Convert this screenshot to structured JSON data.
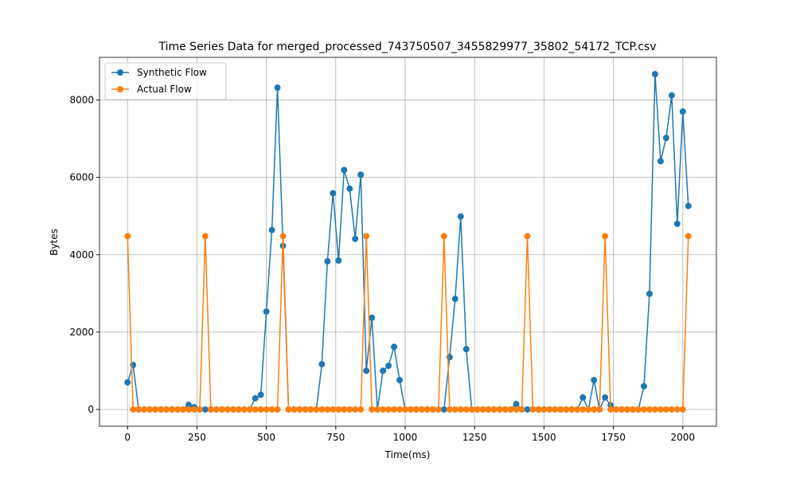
{
  "chart_data": {
    "type": "line",
    "title": "Time Series Data for merged_processed_743750507_3455829977_35802_54172_TCP.csv",
    "x_label": "Time(ms)",
    "y_label": "Bytes",
    "x": [
      0,
      20,
      40,
      60,
      80,
      100,
      120,
      140,
      160,
      180,
      200,
      220,
      240,
      260,
      280,
      300,
      320,
      340,
      360,
      380,
      400,
      420,
      440,
      460,
      480,
      500,
      520,
      540,
      560,
      580,
      600,
      620,
      640,
      660,
      680,
      700,
      720,
      740,
      760,
      780,
      800,
      820,
      840,
      860,
      880,
      900,
      920,
      940,
      960,
      980,
      1000,
      1020,
      1040,
      1060,
      1080,
      1100,
      1120,
      1140,
      1160,
      1180,
      1200,
      1220,
      1240,
      1260,
      1280,
      1300,
      1320,
      1340,
      1360,
      1380,
      1400,
      1420,
      1440,
      1460,
      1480,
      1500,
      1520,
      1540,
      1560,
      1580,
      1600,
      1620,
      1640,
      1660,
      1680,
      1700,
      1720,
      1740,
      1760,
      1780,
      1800,
      1820,
      1840,
      1860,
      1880,
      1900,
      1920,
      1940,
      1960,
      1980,
      2000,
      2020
    ],
    "series": [
      {
        "name": "Synthetic Flow",
        "color": "#1f77b4",
        "values": [
          700,
          1150,
          0,
          0,
          0,
          0,
          0,
          0,
          0,
          0,
          0,
          120,
          60,
          0,
          0,
          0,
          0,
          0,
          0,
          0,
          0,
          0,
          0,
          290,
          380,
          2530,
          4640,
          8320,
          4230,
          0,
          0,
          0,
          0,
          0,
          0,
          1170,
          3830,
          5590,
          3850,
          6190,
          5710,
          4410,
          6070,
          1000,
          2370,
          0,
          1000,
          1130,
          1620,
          760,
          0,
          0,
          0,
          0,
          0,
          0,
          0,
          0,
          1350,
          2860,
          4990,
          1560,
          0,
          0,
          0,
          0,
          0,
          0,
          0,
          0,
          140,
          0,
          0,
          0,
          0,
          0,
          0,
          0,
          0,
          0,
          0,
          0,
          310,
          0,
          760,
          0,
          310,
          110,
          0,
          0,
          0,
          0,
          0,
          600,
          2990,
          8670,
          6420,
          7020,
          8120,
          4800,
          7700,
          5260
        ]
      },
      {
        "name": "Actual Flow",
        "color": "#ff7f0e",
        "values": [
          4480,
          0,
          0,
          0,
          0,
          0,
          0,
          0,
          0,
          0,
          0,
          0,
          0,
          0,
          4480,
          0,
          0,
          0,
          0,
          0,
          0,
          0,
          0,
          0,
          0,
          0,
          0,
          0,
          4480,
          0,
          0,
          0,
          0,
          0,
          0,
          0,
          0,
          0,
          0,
          0,
          0,
          0,
          0,
          4480,
          0,
          0,
          0,
          0,
          0,
          0,
          0,
          0,
          0,
          0,
          0,
          0,
          0,
          4480,
          0,
          0,
          0,
          0,
          0,
          0,
          0,
          0,
          0,
          0,
          0,
          0,
          0,
          0,
          4480,
          0,
          0,
          0,
          0,
          0,
          0,
          0,
          0,
          0,
          0,
          0,
          0,
          0,
          4480,
          0,
          0,
          0,
          0,
          0,
          0,
          0,
          0,
          0,
          0,
          0,
          0,
          0,
          0,
          4480
        ]
      }
    ],
    "xlim": [
      -101,
      2121
    ],
    "ylim": [
      -433,
      9103
    ],
    "xticks": [
      0,
      250,
      500,
      750,
      1000,
      1250,
      1500,
      1750,
      2000
    ],
    "yticks": [
      0,
      2000,
      4000,
      6000,
      8000
    ],
    "grid": true,
    "legend": "upper left",
    "markers": true
  }
}
